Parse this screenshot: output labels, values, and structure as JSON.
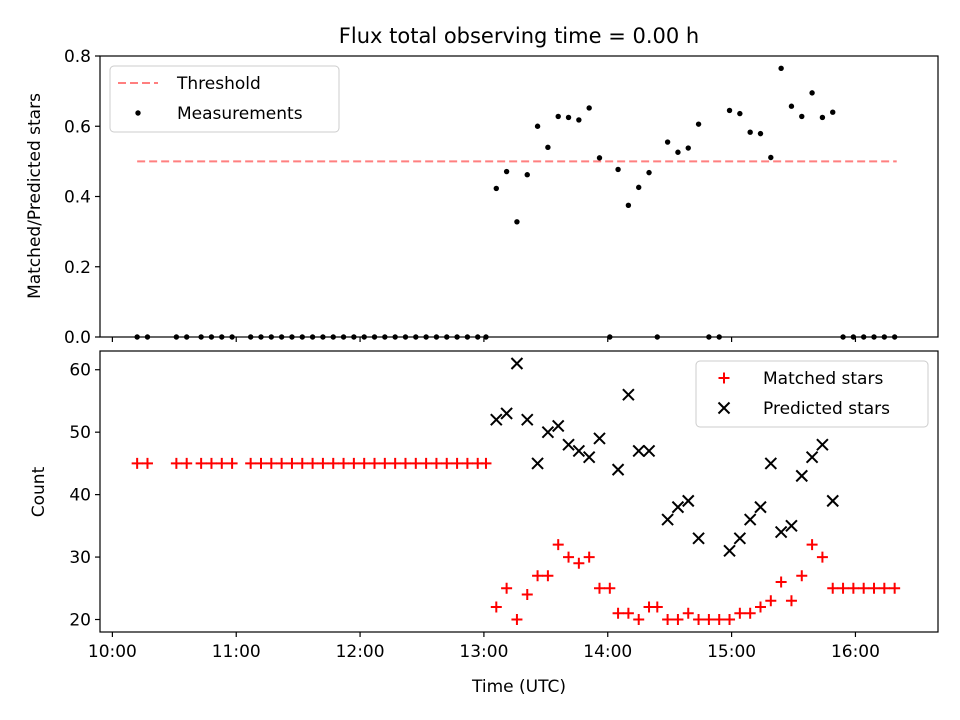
{
  "chart_data": [
    {
      "type": "scatter",
      "title": "Flux total observing time = 0.00 h",
      "xlabel": "",
      "ylabel": "Matched/Predicted stars",
      "xlim": [
        "09:54",
        "16:40"
      ],
      "ylim": [
        0,
        0.8
      ],
      "yticks": [
        "0.0",
        "0.2",
        "0.4",
        "0.6",
        "0.8"
      ],
      "xticks": [
        "10:00",
        "11:00",
        "12:00",
        "13:00",
        "14:00",
        "15:00",
        "16:00"
      ],
      "legend_position": "top-left",
      "threshold": {
        "name": "Threshold",
        "value": 0.5,
        "x_start": "10:12",
        "x_end": "16:20",
        "color": "#ff7f7f",
        "style": "dashed"
      },
      "series": [
        {
          "name": "Measurements",
          "color": "#000000",
          "marker": "dot",
          "points": [
            [
              "10:12",
              0.0
            ],
            [
              "10:17",
              0.0
            ],
            [
              "10:31",
              0.0
            ],
            [
              "10:36",
              0.0
            ],
            [
              "10:43",
              0.0
            ],
            [
              "10:48",
              0.0
            ],
            [
              "10:53",
              0.0
            ],
            [
              "10:58",
              0.0
            ],
            [
              "11:07",
              0.0
            ],
            [
              "11:12",
              0.0
            ],
            [
              "11:17",
              0.0
            ],
            [
              "11:22",
              0.0
            ],
            [
              "11:27",
              0.0
            ],
            [
              "11:32",
              0.0
            ],
            [
              "11:37",
              0.0
            ],
            [
              "11:42",
              0.0
            ],
            [
              "11:47",
              0.0
            ],
            [
              "11:52",
              0.0
            ],
            [
              "11:57",
              0.0
            ],
            [
              "12:02",
              0.0
            ],
            [
              "12:07",
              0.0
            ],
            [
              "12:12",
              0.0
            ],
            [
              "12:17",
              0.0
            ],
            [
              "12:22",
              0.0
            ],
            [
              "12:27",
              0.0
            ],
            [
              "12:32",
              0.0
            ],
            [
              "12:37",
              0.0
            ],
            [
              "12:42",
              0.0
            ],
            [
              "12:47",
              0.0
            ],
            [
              "12:52",
              0.0
            ],
            [
              "12:57",
              0.0
            ],
            [
              "13:01",
              0.0
            ],
            [
              "13:06",
              0.423
            ],
            [
              "13:11",
              0.471
            ],
            [
              "13:16",
              0.328
            ],
            [
              "13:21",
              0.462
            ],
            [
              "13:26",
              0.6
            ],
            [
              "13:31",
              0.54
            ],
            [
              "13:36",
              0.628
            ],
            [
              "13:41",
              0.625
            ],
            [
              "13:46",
              0.618
            ],
            [
              "13:51",
              0.652
            ],
            [
              "13:56",
              0.51
            ],
            [
              "14:01",
              0.0
            ],
            [
              "14:05",
              0.477
            ],
            [
              "14:10",
              0.375
            ],
            [
              "14:15",
              0.426
            ],
            [
              "14:20",
              0.468
            ],
            [
              "14:24",
              0.0
            ],
            [
              "14:29",
              0.555
            ],
            [
              "14:34",
              0.526
            ],
            [
              "14:39",
              0.538
            ],
            [
              "14:44",
              0.606
            ],
            [
              "14:49",
              0.0
            ],
            [
              "14:54",
              0.0
            ],
            [
              "14:59",
              0.645
            ],
            [
              "15:04",
              0.636
            ],
            [
              "15:09",
              0.583
            ],
            [
              "15:14",
              0.579
            ],
            [
              "15:19",
              0.511
            ],
            [
              "15:24",
              0.765
            ],
            [
              "15:29",
              0.657
            ],
            [
              "15:34",
              0.628
            ],
            [
              "15:39",
              0.695
            ],
            [
              "15:44",
              0.625
            ],
            [
              "15:49",
              0.64
            ],
            [
              "15:54",
              0.0
            ],
            [
              "15:59",
              0.0
            ],
            [
              "16:04",
              0.0
            ],
            [
              "16:09",
              0.0
            ],
            [
              "16:14",
              0.0
            ],
            [
              "16:19",
              0.0
            ]
          ]
        }
      ]
    },
    {
      "type": "scatter",
      "title": "",
      "xlabel": "Time (UTC)",
      "ylabel": "Count",
      "xlim": [
        "09:54",
        "16:40"
      ],
      "ylim": [
        18,
        63
      ],
      "yticks": [
        "20",
        "30",
        "40",
        "50",
        "60"
      ],
      "xticks": [
        "10:00",
        "11:00",
        "12:00",
        "13:00",
        "14:00",
        "15:00",
        "16:00"
      ],
      "legend_position": "top-right",
      "series": [
        {
          "name": "Matched stars",
          "color": "#ff0000",
          "marker": "plus",
          "points": [
            [
              "10:12",
              45
            ],
            [
              "10:17",
              45
            ],
            [
              "10:31",
              45
            ],
            [
              "10:36",
              45
            ],
            [
              "10:43",
              45
            ],
            [
              "10:48",
              45
            ],
            [
              "10:53",
              45
            ],
            [
              "10:58",
              45
            ],
            [
              "11:07",
              45
            ],
            [
              "11:12",
              45
            ],
            [
              "11:17",
              45
            ],
            [
              "11:22",
              45
            ],
            [
              "11:27",
              45
            ],
            [
              "11:32",
              45
            ],
            [
              "11:37",
              45
            ],
            [
              "11:42",
              45
            ],
            [
              "11:47",
              45
            ],
            [
              "11:52",
              45
            ],
            [
              "11:57",
              45
            ],
            [
              "12:02",
              45
            ],
            [
              "12:07",
              45
            ],
            [
              "12:12",
              45
            ],
            [
              "12:17",
              45
            ],
            [
              "12:22",
              45
            ],
            [
              "12:27",
              45
            ],
            [
              "12:32",
              45
            ],
            [
              "12:37",
              45
            ],
            [
              "12:42",
              45
            ],
            [
              "12:47",
              45
            ],
            [
              "12:52",
              45
            ],
            [
              "12:57",
              45
            ],
            [
              "13:01",
              45
            ],
            [
              "13:06",
              22
            ],
            [
              "13:11",
              25
            ],
            [
              "13:16",
              20
            ],
            [
              "13:21",
              24
            ],
            [
              "13:26",
              27
            ],
            [
              "13:31",
              27
            ],
            [
              "13:36",
              32
            ],
            [
              "13:41",
              30
            ],
            [
              "13:46",
              29
            ],
            [
              "13:51",
              30
            ],
            [
              "13:56",
              25
            ],
            [
              "14:01",
              25
            ],
            [
              "14:05",
              21
            ],
            [
              "14:10",
              21
            ],
            [
              "14:15",
              20
            ],
            [
              "14:20",
              22
            ],
            [
              "14:24",
              22
            ],
            [
              "14:29",
              20
            ],
            [
              "14:34",
              20
            ],
            [
              "14:39",
              21
            ],
            [
              "14:44",
              20
            ],
            [
              "14:49",
              20
            ],
            [
              "14:54",
              20
            ],
            [
              "14:59",
              20
            ],
            [
              "15:04",
              21
            ],
            [
              "15:09",
              21
            ],
            [
              "15:14",
              22
            ],
            [
              "15:19",
              23
            ],
            [
              "15:24",
              26
            ],
            [
              "15:29",
              23
            ],
            [
              "15:34",
              27
            ],
            [
              "15:39",
              32
            ],
            [
              "15:44",
              30
            ],
            [
              "15:49",
              25
            ],
            [
              "15:54",
              25
            ],
            [
              "15:59",
              25
            ],
            [
              "16:04",
              25
            ],
            [
              "16:09",
              25
            ],
            [
              "16:14",
              25
            ],
            [
              "16:19",
              25
            ]
          ]
        },
        {
          "name": "Predicted stars",
          "color": "#000000",
          "marker": "x",
          "points": [
            [
              "13:06",
              52
            ],
            [
              "13:11",
              53
            ],
            [
              "13:16",
              61
            ],
            [
              "13:21",
              52
            ],
            [
              "13:26",
              45
            ],
            [
              "13:31",
              50
            ],
            [
              "13:36",
              51
            ],
            [
              "13:41",
              48
            ],
            [
              "13:46",
              47
            ],
            [
              "13:51",
              46
            ],
            [
              "13:56",
              49
            ],
            [
              "14:05",
              44
            ],
            [
              "14:10",
              56
            ],
            [
              "14:15",
              47
            ],
            [
              "14:20",
              47
            ],
            [
              "14:29",
              36
            ],
            [
              "14:34",
              38
            ],
            [
              "14:39",
              39
            ],
            [
              "14:44",
              33
            ],
            [
              "14:59",
              31
            ],
            [
              "15:04",
              33
            ],
            [
              "15:09",
              36
            ],
            [
              "15:14",
              38
            ],
            [
              "15:19",
              45
            ],
            [
              "15:24",
              34
            ],
            [
              "15:29",
              35
            ],
            [
              "15:34",
              43
            ],
            [
              "15:39",
              46
            ],
            [
              "15:44",
              48
            ],
            [
              "15:49",
              39
            ]
          ]
        }
      ]
    }
  ]
}
